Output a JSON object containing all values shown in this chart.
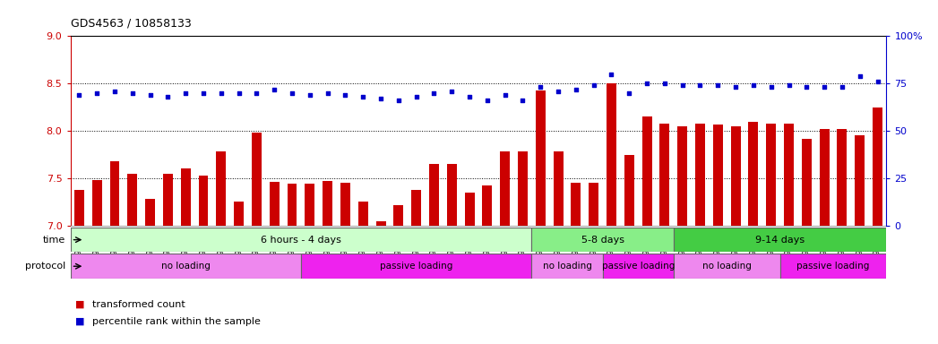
{
  "title": "GDS4563 / 10858133",
  "samples": [
    "GSM930471",
    "GSM930472",
    "GSM930473",
    "GSM930474",
    "GSM930475",
    "GSM930476",
    "GSM930477",
    "GSM930478",
    "GSM930479",
    "GSM930480",
    "GSM930481",
    "GSM930482",
    "GSM930483",
    "GSM930494",
    "GSM930495",
    "GSM930496",
    "GSM930497",
    "GSM930498",
    "GSM930499",
    "GSM930500",
    "GSM930501",
    "GSM930502",
    "GSM930503",
    "GSM930504",
    "GSM930505",
    "GSM930506",
    "GSM930484",
    "GSM930485",
    "GSM930486",
    "GSM930487",
    "GSM930507",
    "GSM930508",
    "GSM930509",
    "GSM930510",
    "GSM930488",
    "GSM930489",
    "GSM930490",
    "GSM930491",
    "GSM930492",
    "GSM930493",
    "GSM930511",
    "GSM930512",
    "GSM930513",
    "GSM930514",
    "GSM930515",
    "GSM930516"
  ],
  "bar_values": [
    7.38,
    7.48,
    7.68,
    7.55,
    7.28,
    7.55,
    7.6,
    7.53,
    7.78,
    7.25,
    7.98,
    7.46,
    7.44,
    7.44,
    7.47,
    7.45,
    7.25,
    7.05,
    7.22,
    7.38,
    7.65,
    7.65,
    7.35,
    7.42,
    7.78,
    7.78,
    8.43,
    7.78,
    7.45,
    7.45,
    8.5,
    7.75,
    8.15,
    8.08,
    8.05,
    8.08,
    8.07,
    8.05,
    8.1,
    8.08,
    8.08,
    7.92,
    8.02,
    8.02,
    7.95,
    8.25
  ],
  "percentile_values": [
    69,
    70,
    71,
    70,
    69,
    68,
    70,
    70,
    70,
    70,
    70,
    72,
    70,
    69,
    70,
    69,
    68,
    67,
    66,
    68,
    70,
    71,
    68,
    66,
    69,
    66,
    73,
    71,
    72,
    74,
    80,
    70,
    75,
    75,
    74,
    74,
    74,
    73,
    74,
    73,
    74,
    73,
    73,
    73,
    79,
    76
  ],
  "ylim_left": [
    7.0,
    9.0
  ],
  "ylim_right": [
    0,
    100
  ],
  "yticks_left": [
    7.0,
    7.5,
    8.0,
    8.5,
    9.0
  ],
  "yticks_right": [
    0,
    25,
    50,
    75,
    100
  ],
  "bar_color": "#CC0000",
  "dot_color": "#0000CC",
  "background_color": "#ffffff",
  "time_groups": [
    {
      "label": "6 hours - 4 days",
      "start": 0,
      "end": 26,
      "color": "#ccffcc"
    },
    {
      "label": "5-8 days",
      "start": 26,
      "end": 34,
      "color": "#88ee88"
    },
    {
      "label": "9-14 days",
      "start": 34,
      "end": 46,
      "color": "#44cc44"
    }
  ],
  "protocol_groups": [
    {
      "label": "no loading",
      "start": 0,
      "end": 13,
      "color": "#ee88ee"
    },
    {
      "label": "passive loading",
      "start": 13,
      "end": 26,
      "color": "#ee22ee"
    },
    {
      "label": "no loading",
      "start": 26,
      "end": 30,
      "color": "#ee88ee"
    },
    {
      "label": "passive loading",
      "start": 30,
      "end": 34,
      "color": "#ee22ee"
    },
    {
      "label": "no loading",
      "start": 34,
      "end": 40,
      "color": "#ee88ee"
    },
    {
      "label": "passive loading",
      "start": 40,
      "end": 46,
      "color": "#ee22ee"
    }
  ],
  "legend_bar_label": "transformed count",
  "legend_dot_label": "percentile rank within the sample",
  "fig_width": 10.47,
  "fig_height": 3.84,
  "dpi": 100
}
